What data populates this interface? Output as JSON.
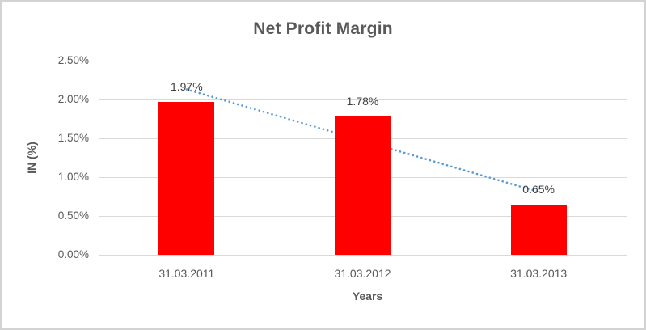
{
  "chart_data": {
    "type": "bar",
    "title": "Net Profit Margin",
    "categories": [
      "31.03.2011",
      "31.03.2012",
      "31.03.2013"
    ],
    "values": [
      1.97,
      1.78,
      0.65
    ],
    "data_labels": [
      "1.97%",
      "1.78%",
      "0.65%"
    ],
    "xlabel": "Years",
    "ylabel": "IN (%)",
    "ylim": [
      0,
      2.5
    ],
    "ytick_step": 0.5,
    "ytick_labels": [
      "0.00%",
      "0.50%",
      "1.00%",
      "1.50%",
      "2.00%",
      "2.50%"
    ],
    "grid": true,
    "legend_position": "none",
    "trendline": {
      "type": "linear",
      "style": "dotted",
      "start_value": 2.13,
      "end_value": 0.81
    },
    "colors": {
      "bar": "#FF0000",
      "trendline": "#5B9BD5",
      "gridline": "#D9D9D9",
      "axis_text": "#595959",
      "data_label_text": "#404040",
      "frame_border": "#D3D3D3",
      "background": "#FFFFFF"
    }
  }
}
